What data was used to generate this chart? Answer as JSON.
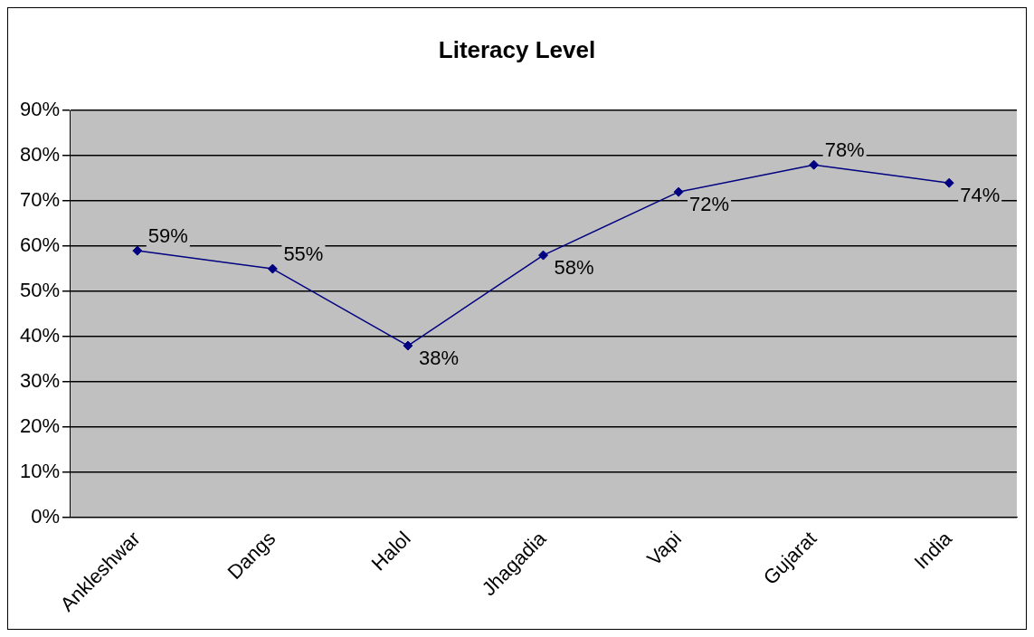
{
  "chart_data": {
    "type": "line",
    "title": "Literacy Level",
    "categories": [
      "Ankleshwar",
      "Dangs",
      "Halol",
      "Jhagadia",
      "Vapi",
      "Gujarat",
      "India"
    ],
    "series": [
      {
        "color": "#000080",
        "values": [
          59,
          55,
          38,
          58,
          72,
          78,
          74
        ],
        "value_labels": [
          "59%",
          "55%",
          "38%",
          "58%",
          "72%",
          "78%",
          "74%"
        ]
      }
    ],
    "ylim": [
      0,
      90
    ],
    "yticks": [
      {
        "value": 0,
        "label": "0%"
      },
      {
        "value": 10,
        "label": "10%"
      },
      {
        "value": 20,
        "label": "20%"
      },
      {
        "value": 30,
        "label": "30%"
      },
      {
        "value": 40,
        "label": "40%"
      },
      {
        "value": 50,
        "label": "50%"
      },
      {
        "value": 60,
        "label": "60%"
      },
      {
        "value": 70,
        "label": "70%"
      },
      {
        "value": 80,
        "label": "80%"
      },
      {
        "value": 90,
        "label": "90%"
      }
    ],
    "grid": "y",
    "legend": false,
    "marker": "diamond",
    "line_style": "solid"
  }
}
